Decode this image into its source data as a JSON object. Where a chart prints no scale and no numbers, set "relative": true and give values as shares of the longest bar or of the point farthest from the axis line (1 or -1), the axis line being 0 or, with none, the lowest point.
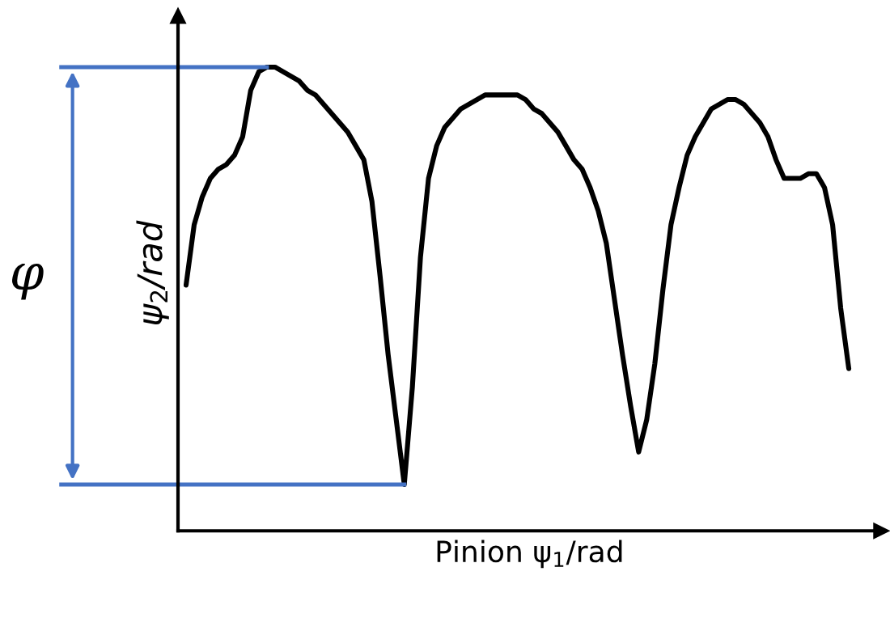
{
  "chart_data": {
    "type": "line",
    "relative": true,
    "xlabel": "Pinion ψ$_{1}$/rad",
    "ylabel": "ψ$_{2}$/rad",
    "annotations": [
      "φ"
    ],
    "marker": "none",
    "line_style": "solid",
    "categories": [
      null,
      null,
      null,
      null,
      null,
      null,
      null,
      null,
      null,
      null,
      null,
      null,
      null,
      null,
      null,
      null,
      null,
      null,
      null,
      null,
      null,
      null,
      null,
      null,
      null,
      null,
      null,
      null,
      null,
      null,
      null,
      null,
      null,
      null,
      null,
      null,
      null,
      null,
      null,
      null,
      null,
      null,
      null,
      null,
      null,
      null,
      null,
      null,
      null,
      null,
      null,
      null,
      null,
      null,
      null,
      null,
      null,
      null,
      null,
      null,
      null,
      null,
      null,
      null,
      null,
      null,
      null,
      null,
      null,
      null,
      null,
      null,
      null,
      null,
      null,
      null,
      null,
      null,
      null,
      null,
      null,
      null,
      null
    ],
    "series": [
      {
        "color": "#000000",
        "values": [
          0.53,
          0.66,
          0.72,
          0.76,
          0.78,
          0.79,
          0.81,
          0.85,
          0.95,
          0.99,
          1.0,
          1.0,
          0.99,
          0.98,
          0.97,
          0.95,
          0.94,
          0.92,
          0.9,
          0.88,
          0.86,
          0.83,
          0.8,
          0.71,
          0.55,
          0.38,
          0.24,
          0.1,
          0.31,
          0.59,
          0.76,
          0.83,
          0.87,
          0.89,
          0.91,
          0.92,
          0.93,
          0.94,
          0.94,
          0.94,
          0.94,
          0.94,
          0.93,
          0.91,
          0.9,
          0.88,
          0.86,
          0.83,
          0.8,
          0.78,
          0.74,
          0.69,
          0.62,
          0.5,
          0.38,
          0.27,
          0.17,
          0.24,
          0.36,
          0.52,
          0.66,
          0.74,
          0.81,
          0.85,
          0.88,
          0.91,
          0.92,
          0.93,
          0.93,
          0.92,
          0.9,
          0.88,
          0.85,
          0.8,
          0.76,
          0.76,
          0.76,
          0.77,
          0.77,
          0.74,
          0.66,
          0.48,
          0.35
        ]
      }
    ],
    "ref_lines": [
      {
        "axis": "y",
        "value": 1.0,
        "color": "#4472c4"
      },
      {
        "axis": "y",
        "value": 0.1,
        "color": "#4472c4"
      }
    ]
  }
}
